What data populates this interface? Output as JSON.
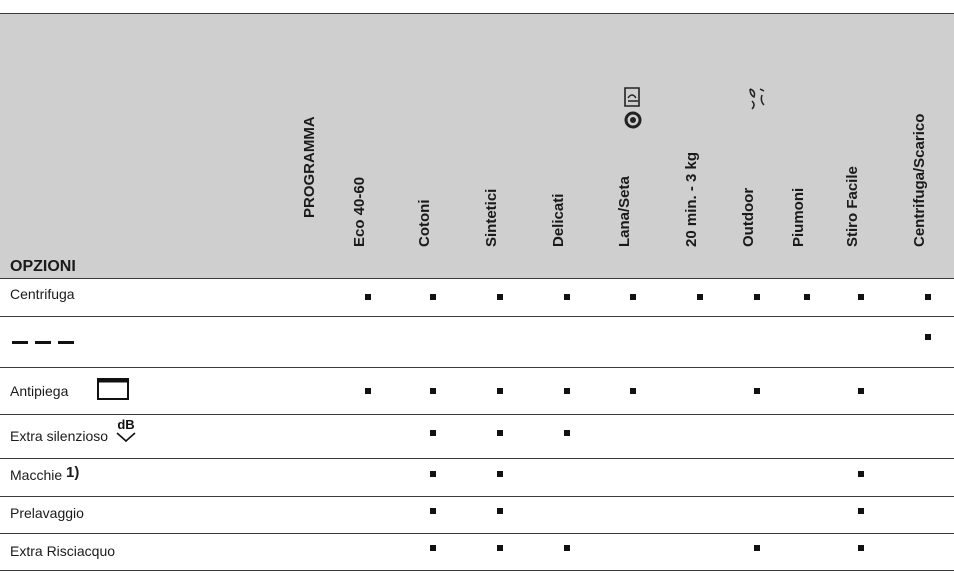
{
  "header": {
    "corner_label": "OPZIONI",
    "programma_label": "PROGRAMMA",
    "programs": [
      {
        "id": "eco",
        "label": "Eco 40-60"
      },
      {
        "id": "cotoni",
        "label": "Cotoni"
      },
      {
        "id": "sintetici",
        "label": "Sintetici"
      },
      {
        "id": "delicati",
        "label": "Delicati"
      },
      {
        "id": "lana",
        "label": "Lana/Seta",
        "icon": "woolmark-handwash-icon"
      },
      {
        "id": "20min",
        "label": "20 min. - 3 kg"
      },
      {
        "id": "outdoor",
        "label": "Outdoor",
        "icon": "outdoor-icon"
      },
      {
        "id": "piumoni",
        "label": "Piumoni"
      },
      {
        "id": "stiro",
        "label": "Stiro Facile"
      },
      {
        "id": "centrifuga",
        "label": "Centrifuga/Scarico"
      }
    ]
  },
  "rows": [
    {
      "label": "Centrifuga",
      "icon": "",
      "marks": [
        1,
        1,
        1,
        1,
        1,
        1,
        1,
        1,
        1,
        1
      ]
    },
    {
      "label": "",
      "icon": "dash-dash-dash-icon",
      "marks": [
        0,
        0,
        0,
        0,
        0,
        0,
        0,
        0,
        0,
        1
      ]
    },
    {
      "label": "Antipiega",
      "icon": "antipiega-box-icon",
      "marks": [
        1,
        1,
        1,
        1,
        1,
        0,
        1,
        0,
        1,
        0
      ]
    },
    {
      "label": "Extra silenzioso",
      "icon": "db-quiet-icon",
      "marks": [
        0,
        1,
        1,
        1,
        0,
        0,
        0,
        0,
        0,
        0
      ]
    },
    {
      "label": "Macchie",
      "superscript": "1)",
      "icon": "",
      "marks": [
        0,
        1,
        1,
        0,
        0,
        0,
        0,
        0,
        1,
        0
      ]
    },
    {
      "label": "Prelavaggio",
      "icon": "",
      "marks": [
        0,
        1,
        1,
        0,
        0,
        0,
        0,
        0,
        1,
        0
      ]
    },
    {
      "label": "Extra Risciacquo",
      "icon": "",
      "marks": [
        0,
        1,
        1,
        1,
        0,
        0,
        1,
        0,
        1,
        0
      ]
    }
  ],
  "icons": {
    "mark": "square-bullet",
    "db_text": "dB"
  }
}
